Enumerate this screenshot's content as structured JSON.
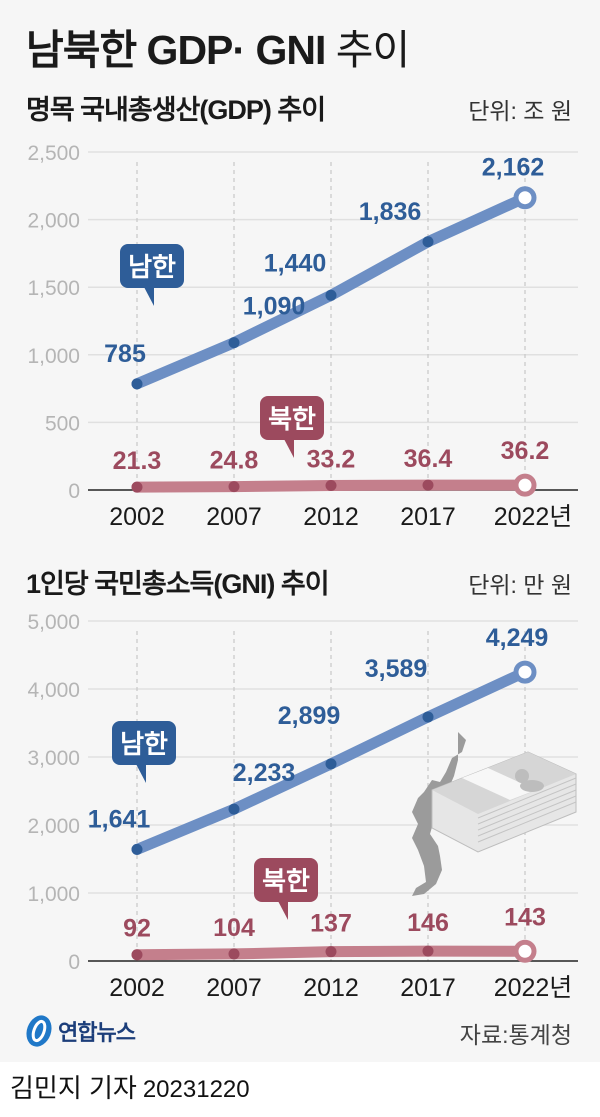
{
  "header": {
    "title_bold": "남북한 GDP· GNI",
    "title_light": " 추이"
  },
  "colors": {
    "south": "#2e5d98",
    "south_line": "#6d8fc4",
    "north": "#9c4a5e",
    "north_line": "#c47f8c",
    "grid": "#e0e0e0",
    "axis_label": "#b5b5b5"
  },
  "footer": {
    "logo_text": "연합뉴스",
    "source": "자료:통계청",
    "byline_name": "김민지 기자",
    "byline_date": "20231220"
  },
  "chart_data": [
    {
      "type": "line",
      "title": "명목 국내총생산(GDP) 추이",
      "unit": "단위: 조 원",
      "categories": [
        "2002",
        "2007",
        "2012",
        "2017",
        "2022년"
      ],
      "x": [
        2002,
        2007,
        2012,
        2017,
        2022
      ],
      "series": [
        {
          "name": "남한",
          "values": [
            785,
            1090,
            1440,
            1836,
            2162
          ],
          "labels": [
            "785",
            "1,090",
            "1,440",
            "1,836",
            "2,162"
          ]
        },
        {
          "name": "북한",
          "values": [
            21.3,
            24.8,
            33.2,
            36.4,
            36.2
          ],
          "labels": [
            "21.3",
            "24.8",
            "33.2",
            "36.4",
            "36.2"
          ]
        }
      ],
      "yticks": [
        "0",
        "500",
        "1,000",
        "1,500",
        "2,000",
        "2,500"
      ],
      "ylim": [
        0,
        2500
      ],
      "grid": true,
      "xlabel": "",
      "ylabel": ""
    },
    {
      "type": "line",
      "title": "1인당 국민총소득(GNI) 추이",
      "unit": "단위: 만 원",
      "categories": [
        "2002",
        "2007",
        "2012",
        "2017",
        "2022년"
      ],
      "x": [
        2002,
        2007,
        2012,
        2017,
        2022
      ],
      "series": [
        {
          "name": "남한",
          "values": [
            1641,
            2233,
            2899,
            3589,
            4249
          ],
          "labels": [
            "1,641",
            "2,233",
            "2,899",
            "3,589",
            "4,249"
          ]
        },
        {
          "name": "북한",
          "values": [
            92,
            104,
            137,
            146,
            143
          ],
          "labels": [
            "92",
            "104",
            "137",
            "146",
            "143"
          ]
        }
      ],
      "yticks": [
        "0",
        "1,000",
        "2,000",
        "3,000",
        "4,000",
        "5,000"
      ],
      "ylim": [
        0,
        5000
      ],
      "grid": true,
      "xlabel": "",
      "ylabel": ""
    }
  ]
}
